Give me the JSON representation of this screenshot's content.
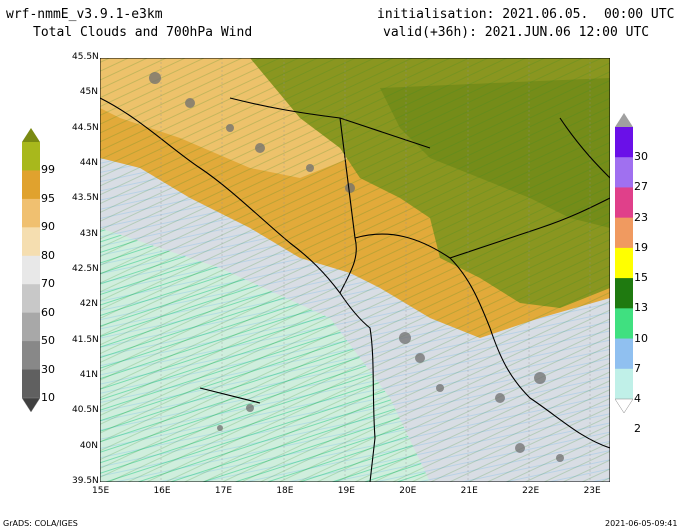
{
  "header": {
    "model": "wrf-nmmE_v3.9.1-e3km",
    "product": "Total Clouds and 700hPa Wind",
    "initialisation": "initialisation: 2021.06.05.  00:00 UTC",
    "valid": "valid(+36h): 2021.JUN.06 12:00 UTC"
  },
  "map": {
    "lat_labels": [
      "45.5N",
      "45N",
      "44.5N",
      "44N",
      "43.5N",
      "43N",
      "42.5N",
      "42N",
      "41.5N",
      "41N",
      "40.5N",
      "40N",
      "39.5N"
    ],
    "lon_labels": [
      "15E",
      "16E",
      "17E",
      "18E",
      "19E",
      "20E",
      "21E",
      "22E",
      "23E"
    ],
    "lat_range": [
      39.5,
      45.5
    ],
    "lon_range": [
      15,
      23.3
    ]
  },
  "cloud_colorbar": {
    "labels": [
      "99",
      "95",
      "90",
      "80",
      "70",
      "60",
      "50",
      "30",
      "10"
    ],
    "colors": [
      "#7a8a12",
      "#a8b81c",
      "#e0a22e",
      "#f0c070",
      "#f5deb0",
      "#e8e8e8",
      "#c8c8c8",
      "#a8a8a8",
      "#888888",
      "#606060",
      "#404040"
    ]
  },
  "wind_colorbar": {
    "labels": [
      "30",
      "27",
      "23",
      "19",
      "15",
      "13",
      "10",
      "7",
      "4",
      "2"
    ],
    "colors": [
      "#a0a0a0",
      "#6a10e8",
      "#a070f0",
      "#e0408a",
      "#f09a60",
      "#ffff00",
      "#1f7a10",
      "#40e080",
      "#90c0f0",
      "#c0f0e8",
      "#ffffff"
    ]
  },
  "footer": {
    "left": "GrADS: COLA/IGES",
    "right": "2021-06-05-09:41"
  }
}
